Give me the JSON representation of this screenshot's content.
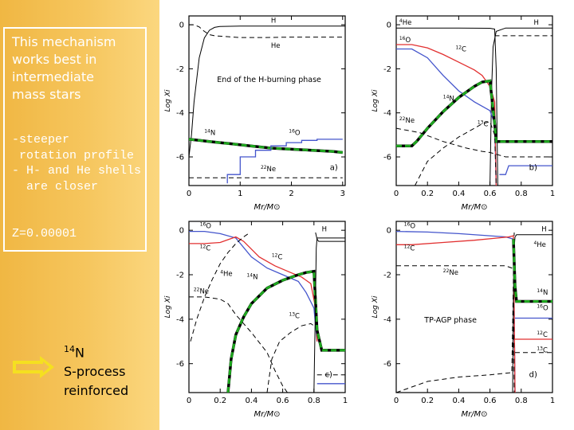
{
  "sidebar": {
    "mechanism_lines": [
      "This mechanism",
      "works best in",
      "intermediate",
      "mass stars"
    ],
    "steeper_lines": [
      "-steeper",
      " rotation profile",
      "- H- and He shells",
      "  are closer"
    ],
    "metallicity": "Z=0.00001",
    "bottom_isotope_mass": "14",
    "bottom_isotope_symbol": "N",
    "bottom_lines": [
      "S-process",
      "reinforced"
    ],
    "arrow_icon": "right-arrow-icon",
    "text_color": "#ffffff",
    "background_color": "#f4c04f"
  },
  "chart_data": [
    {
      "type": "line",
      "panel": "a)",
      "xlabel": "Mr/M⊙",
      "ylabel": "Log Xi",
      "xlim": [
        0,
        3.05
      ],
      "ylim": [
        -7.3,
        0.4
      ],
      "xticks": [
        "0",
        "1",
        "2",
        "3"
      ],
      "yticks": [
        "0",
        "-2",
        "-4",
        "-6"
      ],
      "annotation": "End of the H-burning phase",
      "labels": [
        {
          "text": "H",
          "x": 1.6,
          "y": 0.1
        },
        {
          "text": "He",
          "x": 1.6,
          "y": -1.05
        },
        {
          "text": "14N",
          "x": 0.3,
          "y": -5.0
        },
        {
          "text": "16O",
          "x": 1.95,
          "y": -5.0
        },
        {
          "text": "22Ne",
          "x": 1.4,
          "y": -6.65
        },
        {
          "text": "a)",
          "x": 2.75,
          "y": -6.6
        }
      ],
      "series": [
        {
          "name": "H",
          "style": "solid-black",
          "x": [
            0,
            0.05,
            0.1,
            0.2,
            0.3,
            0.4,
            0.5,
            0.6,
            0.8,
            1.0,
            1.5,
            2.0,
            3.05
          ],
          "y": [
            -6,
            -5,
            -3.5,
            -1.5,
            -0.6,
            -0.25,
            -0.12,
            -0.08,
            -0.07,
            -0.06,
            -0.06,
            -0.06,
            -0.06
          ]
        },
        {
          "name": "He",
          "style": "dashed-black",
          "x": [
            0,
            0.1,
            0.2,
            0.3,
            0.4,
            0.5,
            0.6,
            0.8,
            1.0,
            1.5,
            2.0,
            3.05
          ],
          "y": [
            0,
            0,
            -0.1,
            -0.3,
            -0.45,
            -0.5,
            -0.52,
            -0.55,
            -0.58,
            -0.58,
            -0.56,
            -0.56
          ]
        },
        {
          "name": "14N",
          "style": "dashed-green",
          "x": [
            0,
            0.2,
            0.4,
            0.6,
            0.8,
            1.2,
            1.6,
            2.0,
            2.4,
            2.8,
            3.0
          ],
          "y": [
            -5.2,
            -5.25,
            -5.3,
            -5.35,
            -5.4,
            -5.5,
            -5.6,
            -5.65,
            -5.7,
            -5.75,
            -5.8
          ]
        },
        {
          "name": "16O",
          "style": "solid-blue",
          "x": [
            0.75,
            0.75,
            1.0,
            1.0,
            1.3,
            1.3,
            1.6,
            1.6,
            1.9,
            1.9,
            2.2,
            2.2,
            2.5,
            2.5,
            3.0
          ],
          "y": [
            -7.2,
            -6.8,
            -6.8,
            -6.0,
            -6.0,
            -5.7,
            -5.7,
            -5.5,
            -5.5,
            -5.35,
            -5.35,
            -5.25,
            -5.25,
            -5.2,
            -5.2
          ]
        },
        {
          "name": "22Ne",
          "style": "dashed-black",
          "x": [
            0,
            0.5,
            1.0,
            1.5,
            2.0,
            2.5,
            3.0
          ],
          "y": [
            -6.95,
            -6.95,
            -6.95,
            -6.95,
            -6.95,
            -6.95,
            -6.95
          ]
        }
      ]
    },
    {
      "type": "line",
      "panel": "b)",
      "xlabel": "Mr/M⊙",
      "ylabel": "Log Xi",
      "xlim": [
        0,
        1.0
      ],
      "ylim": [
        -7.3,
        0.4
      ],
      "xticks": [
        "0",
        "0.2",
        "0.4",
        "0.6",
        "0.8",
        "1"
      ],
      "yticks": [
        "0",
        "-2",
        "-4",
        "-6"
      ],
      "labels": [
        {
          "text": "4He",
          "x": 0.02,
          "y": 0.0
        },
        {
          "text": "H",
          "x": 0.88,
          "y": 0.0
        },
        {
          "text": "16O",
          "x": 0.02,
          "y": -0.8
        },
        {
          "text": "12C",
          "x": 0.38,
          "y": -1.2
        },
        {
          "text": "14N",
          "x": 0.3,
          "y": -3.45
        },
        {
          "text": "22Ne",
          "x": 0.02,
          "y": -4.45
        },
        {
          "text": "13C",
          "x": 0.52,
          "y": -4.6
        },
        {
          "text": "b)",
          "x": 0.85,
          "y": -6.6
        }
      ],
      "series": [
        {
          "name": "4He",
          "style": "solid-black",
          "x": [
            0,
            0.2,
            0.4,
            0.6,
            0.63,
            0.64,
            0.65
          ],
          "y": [
            -0.15,
            -0.15,
            -0.15,
            -0.16,
            -0.2,
            -2,
            -7.3
          ]
        },
        {
          "name": "H",
          "style": "solid-black",
          "x": [
            0.6,
            0.61,
            0.62,
            0.64,
            0.7,
            1.0
          ],
          "y": [
            -7.3,
            -3,
            -1,
            -0.3,
            -0.15,
            -0.15
          ]
        },
        {
          "name": "He-outer",
          "style": "dashed-black",
          "x": [
            0.63,
            0.7,
            1.0
          ],
          "y": [
            -0.5,
            -0.5,
            -0.5
          ]
        },
        {
          "name": "16O",
          "style": "solid-blue",
          "x": [
            0,
            0.1,
            0.2,
            0.3,
            0.4,
            0.5,
            0.55,
            0.6,
            0.63,
            0.64
          ],
          "y": [
            -1.1,
            -1.1,
            -1.5,
            -2.3,
            -3.0,
            -3.5,
            -3.7,
            -3.9,
            -4.5,
            -7.3
          ]
        },
        {
          "name": "12C",
          "style": "solid-red",
          "x": [
            0,
            0.1,
            0.2,
            0.3,
            0.4,
            0.5,
            0.55,
            0.6,
            0.63,
            0.64
          ],
          "y": [
            -0.9,
            -0.9,
            -1.05,
            -1.35,
            -1.7,
            -2.05,
            -2.3,
            -2.8,
            -3.5,
            -7.3
          ]
        },
        {
          "name": "14N",
          "style": "dashed-green",
          "x": [
            0,
            0.1,
            0.13,
            0.2,
            0.3,
            0.4,
            0.5,
            0.55,
            0.6,
            0.63,
            0.64,
            0.7,
            1.0
          ],
          "y": [
            -5.5,
            -5.5,
            -5.3,
            -4.7,
            -3.95,
            -3.3,
            -2.8,
            -2.6,
            -2.55,
            -4.5,
            -5.3,
            -5.3,
            -5.3
          ]
        },
        {
          "name": "22Ne",
          "style": "dashed-black",
          "x": [
            0,
            0.15,
            0.3,
            0.45,
            0.55,
            0.6,
            0.65,
            0.7,
            1.0
          ],
          "y": [
            -4.7,
            -4.9,
            -5.3,
            -5.6,
            -5.75,
            -5.8,
            -5.9,
            -6.0,
            -6.0
          ]
        },
        {
          "name": "13C",
          "style": "dashed-black",
          "x": [
            0.12,
            0.2,
            0.3,
            0.4,
            0.5,
            0.55,
            0.6,
            0.63,
            0.64
          ],
          "y": [
            -7.3,
            -6.2,
            -5.6,
            -5.1,
            -4.7,
            -4.5,
            -4.4,
            -5.0,
            -7.3
          ]
        },
        {
          "name": "16O-outer",
          "style": "solid-blue",
          "x": [
            0.66,
            0.7,
            0.72,
            1.0
          ],
          "y": [
            -6.8,
            -6.8,
            -6.4,
            -6.4
          ]
        }
      ]
    },
    {
      "type": "line",
      "panel": "c)",
      "xlabel": "Mr/M⊙",
      "ylabel": "Log Xi",
      "xlim": [
        0,
        1.0
      ],
      "ylim": [
        -7.3,
        0.4
      ],
      "xticks": [
        "0",
        "0.2",
        "0.4",
        "0.6",
        "0.8",
        "1"
      ],
      "yticks": [
        "0",
        "-2",
        "-4",
        "-6"
      ],
      "labels": [
        {
          "text": "16O",
          "x": 0.07,
          "y": 0.1
        },
        {
          "text": "H",
          "x": 0.85,
          "y": -0.05
        },
        {
          "text": "12C",
          "x": 0.07,
          "y": -0.9
        },
        {
          "text": "12C",
          "x": 0.53,
          "y": -1.3
        },
        {
          "text": "4He",
          "x": 0.2,
          "y": -2.05
        },
        {
          "text": "14N",
          "x": 0.37,
          "y": -2.2
        },
        {
          "text": "22Ne",
          "x": 0.03,
          "y": -2.85
        },
        {
          "text": "13C",
          "x": 0.64,
          "y": -3.95
        },
        {
          "text": "c)",
          "x": 0.87,
          "y": -6.6
        }
      ],
      "series": [
        {
          "name": "16O",
          "style": "solid-blue",
          "x": [
            0,
            0.1,
            0.2,
            0.3,
            0.4,
            0.5,
            0.6,
            0.7,
            0.75,
            0.8,
            0.82
          ],
          "y": [
            -0.05,
            -0.05,
            -0.15,
            -0.35,
            -1.2,
            -1.7,
            -2.0,
            -2.3,
            -2.8,
            -3.5,
            -5.0
          ]
        },
        {
          "name": "12C",
          "style": "solid-red",
          "x": [
            0,
            0.1,
            0.2,
            0.3,
            0.35,
            0.45,
            0.55,
            0.65,
            0.72,
            0.78,
            0.81,
            0.82
          ],
          "y": [
            -0.6,
            -0.6,
            -0.55,
            -0.3,
            -0.5,
            -1.2,
            -1.6,
            -1.9,
            -2.1,
            -2.4,
            -3.5,
            -5.0
          ]
        },
        {
          "name": "4He",
          "style": "dashed-black",
          "x": [
            0.01,
            0.05,
            0.1,
            0.15,
            0.2,
            0.25,
            0.3,
            0.35,
            0.38
          ],
          "y": [
            -5.0,
            -4.0,
            -3.0,
            -2.2,
            -1.5,
            -1.0,
            -0.6,
            -0.3,
            -0.15
          ]
        },
        {
          "name": "14N",
          "style": "dashed-green",
          "x": [
            0.25,
            0.27,
            0.3,
            0.35,
            0.4,
            0.5,
            0.6,
            0.7,
            0.75,
            0.8,
            0.82,
            0.85,
            0.9,
            1.0
          ],
          "y": [
            -7.3,
            -5.8,
            -4.7,
            -3.9,
            -3.3,
            -2.6,
            -2.25,
            -2.0,
            -1.9,
            -1.85,
            -4.5,
            -5.4,
            -5.4,
            -5.4
          ]
        },
        {
          "name": "22Ne",
          "style": "dashed-black",
          "x": [
            0,
            0.1,
            0.2,
            0.25,
            0.3,
            0.4,
            0.5,
            0.55,
            0.6,
            0.63
          ],
          "y": [
            -3.0,
            -3.0,
            -3.1,
            -3.3,
            -3.8,
            -4.6,
            -5.5,
            -6.3,
            -7.0,
            -7.3
          ]
        },
        {
          "name": "13C",
          "style": "dashed-black",
          "x": [
            0.5,
            0.53,
            0.58,
            0.65,
            0.72,
            0.78,
            0.8
          ],
          "y": [
            -7.3,
            -5.8,
            -5.0,
            -4.6,
            -4.3,
            -4.2,
            -4.3
          ]
        },
        {
          "name": "H",
          "style": "solid-black",
          "x": [
            0.8,
            0.81,
            0.815,
            0.82,
            1.0
          ],
          "y": [
            -7.3,
            -3.0,
            -0.8,
            -0.35,
            -0.35
          ]
        },
        {
          "name": "He",
          "style": "solid-black",
          "x": [
            0.81,
            0.82,
            0.83,
            1.0
          ],
          "y": [
            -0.1,
            -0.4,
            -0.5,
            -0.5
          ]
        },
        {
          "name": "16O-outer",
          "style": "solid-blue",
          "x": [
            0.82,
            0.85,
            1.0
          ],
          "y": [
            -6.9,
            -6.9,
            -6.9
          ]
        },
        {
          "name": "22Ne-outer",
          "style": "dashed-black",
          "x": [
            0.82,
            0.85,
            1.0
          ],
          "y": [
            -6.5,
            -6.5,
            -6.5
          ]
        }
      ]
    },
    {
      "type": "line",
      "panel": "d)",
      "xlabel": "Mr/M⊙",
      "ylabel": "Log Xi",
      "xlim": [
        0,
        1.0
      ],
      "ylim": [
        -7.3,
        0.4
      ],
      "xticks": [
        "0",
        "0.2",
        "0.4",
        "0.6",
        "0.8",
        "1"
      ],
      "yticks": [
        "0",
        "-2",
        "-4",
        "-6"
      ],
      "annotation": "TP-AGP phase",
      "labels": [
        {
          "text": "16O",
          "x": 0.05,
          "y": 0.1
        },
        {
          "text": "H",
          "x": 0.93,
          "y": -0.05
        },
        {
          "text": "12C",
          "x": 0.05,
          "y": -0.9
        },
        {
          "text": "4He",
          "x": 0.88,
          "y": -0.75
        },
        {
          "text": "22Ne",
          "x": 0.3,
          "y": -2.0
        },
        {
          "text": "14N",
          "x": 0.9,
          "y": -2.9
        },
        {
          "text": "16O",
          "x": 0.9,
          "y": -3.6
        },
        {
          "text": "12C",
          "x": 0.9,
          "y": -4.8
        },
        {
          "text": "13C",
          "x": 0.9,
          "y": -5.5
        },
        {
          "text": "d)",
          "x": 0.85,
          "y": -6.6
        }
      ],
      "series": [
        {
          "name": "16O",
          "style": "solid-blue",
          "x": [
            0,
            0.2,
            0.4,
            0.6,
            0.7,
            0.75,
            0.76
          ],
          "y": [
            -0.05,
            -0.08,
            -0.15,
            -0.25,
            -0.3,
            -0.4,
            -7.3
          ]
        },
        {
          "name": "12C",
          "style": "solid-red",
          "x": [
            0,
            0.1,
            0.3,
            0.5,
            0.65,
            0.72,
            0.75,
            0.76
          ],
          "y": [
            -0.65,
            -0.65,
            -0.55,
            -0.45,
            -0.35,
            -0.3,
            -0.25,
            -7.3
          ]
        },
        {
          "name": "4He",
          "style": "dashed-black",
          "x": [
            0,
            0.2,
            0.4,
            0.6,
            0.74,
            0.755
          ],
          "y": [
            -7.3,
            -6.8,
            -6.6,
            -6.5,
            -6.4,
            -0.1
          ]
        },
        {
          "name": "22Ne",
          "style": "dashed-black",
          "x": [
            0,
            0.2,
            0.4,
            0.6,
            0.7,
            0.74,
            0.75,
            0.755
          ],
          "y": [
            -1.6,
            -1.6,
            -1.6,
            -1.6,
            -1.6,
            -1.7,
            -1.8,
            -7.3
          ]
        },
        {
          "name": "H",
          "style": "solid-black",
          "x": [
            0.745,
            0.75,
            0.755,
            0.76,
            0.77,
            1.0
          ],
          "y": [
            -7.3,
            -3.0,
            -0.8,
            -0.3,
            -0.2,
            -0.2
          ]
        },
        {
          "name": "14N",
          "style": "dashed-green",
          "x": [
            0.75,
            0.76,
            0.77,
            1.0
          ],
          "y": [
            -0.4,
            -2.5,
            -3.2,
            -3.2
          ]
        },
        {
          "name": "12C-outer",
          "style": "solid-red",
          "x": [
            0.76,
            0.77,
            1.0
          ],
          "y": [
            -4.9,
            -4.9,
            -4.9
          ]
        },
        {
          "name": "16O-outer",
          "style": "solid-blue",
          "x": [
            0.76,
            0.77,
            1.0
          ],
          "y": [
            -3.95,
            -3.95,
            -3.95
          ]
        },
        {
          "name": "13C-outer",
          "style": "dashed-black",
          "x": [
            0.76,
            0.77,
            1.0
          ],
          "y": [
            -5.5,
            -5.5,
            -5.5
          ]
        }
      ]
    }
  ]
}
